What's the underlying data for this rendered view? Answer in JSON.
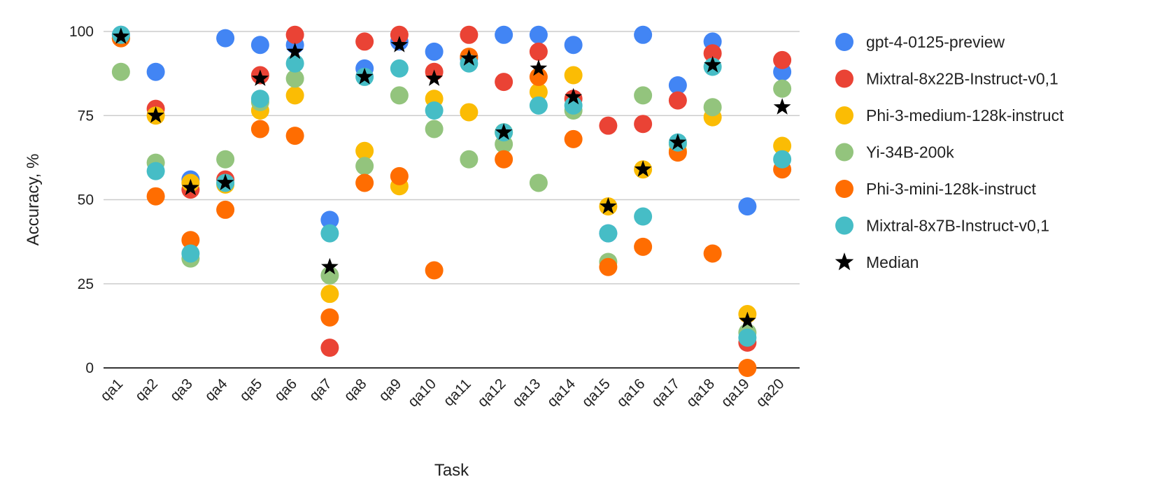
{
  "chart_data": {
    "type": "scatter",
    "title": "",
    "xlabel": "Task",
    "ylabel": "Accuracy, %",
    "ylim": [
      0,
      100
    ],
    "yticks": [
      0,
      25,
      50,
      75,
      100
    ],
    "grid": true,
    "legend_position": "right",
    "categories": [
      "qa1",
      "qa2",
      "qa3",
      "qa4",
      "qa5",
      "qa6",
      "qa7",
      "qa8",
      "qa9",
      "qa10",
      "qa11",
      "qa12",
      "qa13",
      "qa14",
      "qa15",
      "qa16",
      "qa17",
      "qa18",
      "qa19",
      "qa20"
    ],
    "series": [
      {
        "name": "gpt-4-0125-preview",
        "color": "#4285f4",
        "marker": "circle",
        "values": [
          99,
          88,
          56,
          98,
          96,
          96,
          44,
          89,
          97,
          94,
          92,
          99,
          99,
          96,
          40,
          99,
          84,
          97,
          48,
          88
        ]
      },
      {
        "name": "Mixtral-8x22B-Instruct-v0,1",
        "color": "#ea4335",
        "marker": "circle",
        "values": [
          98,
          77,
          53,
          56,
          87,
          99,
          6,
          97,
          99,
          88,
          99,
          85,
          94,
          80,
          72,
          72.5,
          79.5,
          93.5,
          7.5,
          91.5
        ]
      },
      {
        "name": "Phi-3-medium-128k-instruct",
        "color": "#fbbc04",
        "marker": "circle",
        "values": [
          98,
          75,
          55,
          54.5,
          76.5,
          81,
          22,
          64.5,
          54,
          80,
          76,
          70,
          82,
          87,
          48,
          59,
          64.5,
          74.5,
          16,
          66
        ]
      },
      {
        "name": "Yi-34B-200k",
        "color": "#93c47d",
        "marker": "circle",
        "values": [
          88,
          61,
          32.5,
          62,
          79,
          86,
          27.5,
          60,
          81,
          71,
          62,
          66.5,
          55,
          76.5,
          31.5,
          81,
          66.5,
          77.5,
          10.5,
          83
        ]
      },
      {
        "name": "Phi-3-mini-128k-instruct",
        "color": "#ff6d01",
        "marker": "circle",
        "values": [
          98,
          51,
          38,
          47,
          71,
          69,
          15,
          55,
          57,
          29,
          92.5,
          62,
          86.5,
          68,
          30,
          36,
          64,
          34,
          0,
          59
        ]
      },
      {
        "name": "Mixtral-8x7B-Instruct-v0,1",
        "color": "#46bdc6",
        "marker": "circle",
        "values": [
          99,
          58.5,
          34,
          55,
          80,
          90.5,
          40,
          86.5,
          89,
          76.5,
          90.5,
          70,
          78,
          78,
          40,
          45,
          67,
          89.5,
          9,
          62
        ]
      },
      {
        "name": "Median",
        "color": "#000000",
        "marker": "star",
        "values": [
          98.5,
          75,
          53.5,
          55,
          86,
          94,
          30,
          86.5,
          96,
          86,
          92,
          70,
          89,
          80.5,
          48,
          59,
          67,
          90,
          14,
          77.5
        ]
      }
    ]
  }
}
